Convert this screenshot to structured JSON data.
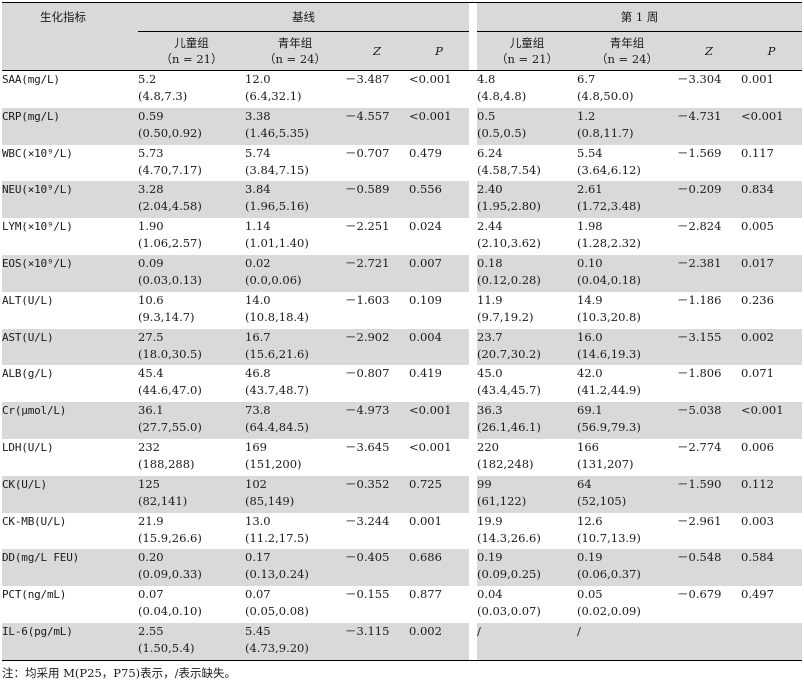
{
  "header": {
    "indicator": "生化指标",
    "baseline": "基线",
    "week1": "第 1 周",
    "children": "儿童组",
    "children_n": "（n = 21）",
    "youth": "青年组",
    "youth_n": "（n = 24）",
    "z": "Z",
    "p": "P"
  },
  "rows": [
    {
      "name": "SAA(mg/L)",
      "bc1": "5.2",
      "bc2": "(4.8,7.3)",
      "by1": "12.0",
      "by2": "(6.4,32.1)",
      "bz": "－3.487",
      "bp": "<0.001",
      "wc1": "4.8",
      "wc2": "(4.8,4.8)",
      "wy1": "6.7",
      "wy2": "(4.8,50.0)",
      "wz": "－3.304",
      "wp": "0.001"
    },
    {
      "name": "CRP(mg/L)",
      "bc1": "0.59",
      "bc2": "(0.50,0.92)",
      "by1": "3.38",
      "by2": "(1.46,5.35)",
      "bz": "－4.557",
      "bp": "<0.001",
      "wc1": "0.5",
      "wc2": "(0.5,0.5)",
      "wy1": "1.2",
      "wy2": "(0.8,11.7)",
      "wz": "－4.731",
      "wp": "<0.001"
    },
    {
      "name": "WBC(×10⁹/L)",
      "bc1": "5.73",
      "bc2": "(4.70,7.17)",
      "by1": "5.74",
      "by2": "(3.84,7.15)",
      "bz": "－0.707",
      "bp": "0.479",
      "wc1": "6.24",
      "wc2": "(4.58,7.54)",
      "wy1": "5.54",
      "wy2": "(3.64,6.12)",
      "wz": "－1.569",
      "wp": "0.117"
    },
    {
      "name": "NEU(×10⁹/L)",
      "bc1": "3.28",
      "bc2": "(2.04,4.58)",
      "by1": "3.84",
      "by2": "(1.96,5.16)",
      "bz": "－0.589",
      "bp": "0.556",
      "wc1": "2.40",
      "wc2": "(1.95,2.80)",
      "wy1": "2.61",
      "wy2": "(1.72,3.48)",
      "wz": "－0.209",
      "wp": "0.834"
    },
    {
      "name": "LYM(×10⁹/L)",
      "bc1": "1.90",
      "bc2": "(1.06,2.57)",
      "by1": "1.14",
      "by2": "(1.01,1.40)",
      "bz": "－2.251",
      "bp": "0.024",
      "wc1": "2.44",
      "wc2": "(2.10,3.62)",
      "wy1": "1.98",
      "wy2": "(1.28,2.32)",
      "wz": "－2.824",
      "wp": "0.005"
    },
    {
      "name": "EOS(×10⁹/L)",
      "bc1": "0.09",
      "bc2": "(0.03,0.13)",
      "by1": "0.02",
      "by2": "(0.0,0.06)",
      "bz": "－2.721",
      "bp": "0.007",
      "wc1": "0.18",
      "wc2": "(0.12,0.28)",
      "wy1": "0.10",
      "wy2": "(0.04,0.18)",
      "wz": "－2.381",
      "wp": "0.017"
    },
    {
      "name": "ALT(U/L)",
      "bc1": "10.6",
      "bc2": "(9.3,14.7)",
      "by1": "14.0",
      "by2": "(10.8,18.4)",
      "bz": "－1.603",
      "bp": "0.109",
      "wc1": "11.9",
      "wc2": "(9.7,19.2)",
      "wy1": "14.9",
      "wy2": "(10.3,20.8)",
      "wz": "－1.186",
      "wp": "0.236"
    },
    {
      "name": "AST(U/L)",
      "bc1": "27.5",
      "bc2": "(18.0,30.5)",
      "by1": "16.7",
      "by2": "(15.6,21.6)",
      "bz": "－2.902",
      "bp": "0.004",
      "wc1": "23.7",
      "wc2": "(20.7,30.2)",
      "wy1": "16.0",
      "wy2": "(14.6,19.3)",
      "wz": "－3.155",
      "wp": "0.002"
    },
    {
      "name": "ALB(g/L)",
      "bc1": "45.4",
      "bc2": "(44.6,47.0)",
      "by1": "46.8",
      "by2": "(43.7,48.7)",
      "bz": "－0.807",
      "bp": "0.419",
      "wc1": "45.0",
      "wc2": "(43.4,45.7)",
      "wy1": "42.0",
      "wy2": "(41.2,44.9)",
      "wz": "－1.806",
      "wp": "0.071"
    },
    {
      "name": "Cr(μmol/L)",
      "bc1": "36.1",
      "bc2": "(27.7,55.0)",
      "by1": "73.8",
      "by2": "(64.4,84.5)",
      "bz": "－4.973",
      "bp": "<0.001",
      "wc1": "36.3",
      "wc2": "(26.1,46.1)",
      "wy1": "69.1",
      "wy2": "(56.9,79.3)",
      "wz": "－5.038",
      "wp": "<0.001"
    },
    {
      "name": "LDH(U/L)",
      "bc1": "232",
      "bc2": "(188,288)",
      "by1": "169",
      "by2": "(151,200)",
      "bz": "－3.645",
      "bp": "<0.001",
      "wc1": "220",
      "wc2": "(182,248)",
      "wy1": "166",
      "wy2": "(131,207)",
      "wz": "－2.774",
      "wp": "0.006"
    },
    {
      "name": "CK(U/L)",
      "bc1": "125",
      "bc2": "(82,141)",
      "by1": "102",
      "by2": "(85,149)",
      "bz": "－0.352",
      "bp": "0.725",
      "wc1": "99",
      "wc2": "(61,122)",
      "wy1": "64",
      "wy2": "(52,105)",
      "wz": "－1.590",
      "wp": "0.112"
    },
    {
      "name": "CK-MB(U/L)",
      "bc1": "21.9",
      "bc2": "(15.9,26.6)",
      "by1": "13.0",
      "by2": "(11.2,17.5)",
      "bz": "－3.244",
      "bp": "0.001",
      "wc1": "19.9",
      "wc2": "(14.3,26.6)",
      "wy1": "12.6",
      "wy2": "(10.7,13.9)",
      "wz": "－2.961",
      "wp": "0.003"
    },
    {
      "name": "DD(mg/L FEU)",
      "bc1": "0.20",
      "bc2": "(0.09,0.33)",
      "by1": "0.17",
      "by2": "(0.13,0.24)",
      "bz": "－0.405",
      "bp": "0.686",
      "wc1": "0.19",
      "wc2": "(0.09,0.25)",
      "wy1": "0.19",
      "wy2": "(0.06,0.37)",
      "wz": "－0.548",
      "wp": "0.584"
    },
    {
      "name": "PCT(ng/mL)",
      "bc1": "0.07",
      "bc2": "(0.04,0.10)",
      "by1": "0.07",
      "by2": "(0.05,0.08)",
      "bz": "－0.155",
      "bp": "0.877",
      "wc1": "0.04",
      "wc2": "(0.03,0.07)",
      "wy1": "0.05",
      "wy2": "(0.02,0.09)",
      "wz": "－0.679",
      "wp": "0.497"
    },
    {
      "name": "IL-6(pg/mL)",
      "bc1": "2.55",
      "bc2": "(1.50,5.4)",
      "by1": "5.45",
      "by2": "(4.73,9.20)",
      "bz": "－3.115",
      "bp": "0.002",
      "wc1": "/",
      "wc2": "",
      "wy1": "/",
      "wy2": "",
      "wz": "",
      "wp": ""
    }
  ],
  "note": "注：均采用 M(P25，P75)表示，/表示缺失。",
  "colors": {
    "shade": "#d9d9d9",
    "rule": "#000000"
  }
}
